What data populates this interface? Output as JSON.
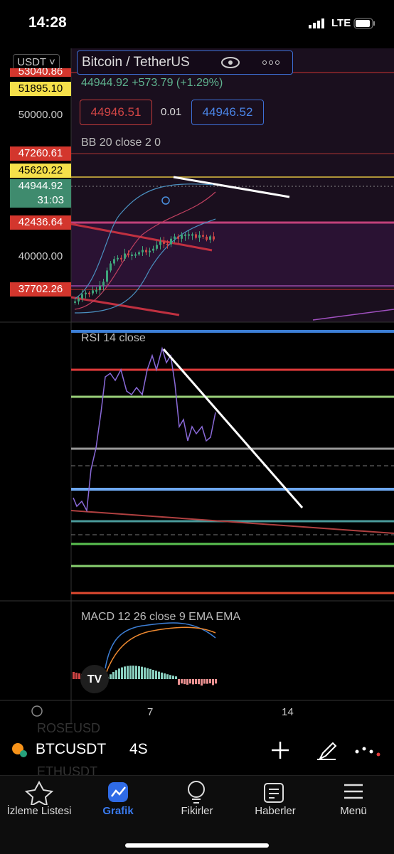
{
  "status_bar": {
    "time": "14:28",
    "network": "LTE"
  },
  "price_scale": {
    "currency": "USDT",
    "labels": [
      "53040.86",
      "51895.10",
      "50000.00",
      "47260.61",
      "45620.22",
      "44944.92",
      "42436.64",
      "40000.00",
      "37702.26"
    ],
    "countdown": "31:03"
  },
  "header": {
    "symbol_name": "Bitcoin / TetherUS",
    "last_price": "44944.92",
    "change": "+573.79",
    "change_percent": "(+1.29%)",
    "sell_price": "44946.51",
    "spread": "0.01",
    "buy_price": "44946.52"
  },
  "indicators": {
    "bb": "BB 20 close 2 0",
    "rsi": "RSI 14 close",
    "macd": "MACD 12 26 close 9 EMA EMA"
  },
  "time_axis": [
    "7",
    "14"
  ],
  "symbol_bar": {
    "list_above": "ROSEUSD",
    "symbol": "BTCUSDT",
    "interval": "4S",
    "list_below": "ETHUSDT"
  },
  "tabs": [
    "İzleme Listesi",
    "Grafik",
    "Fikirler",
    "Haberler",
    "Menü"
  ]
}
